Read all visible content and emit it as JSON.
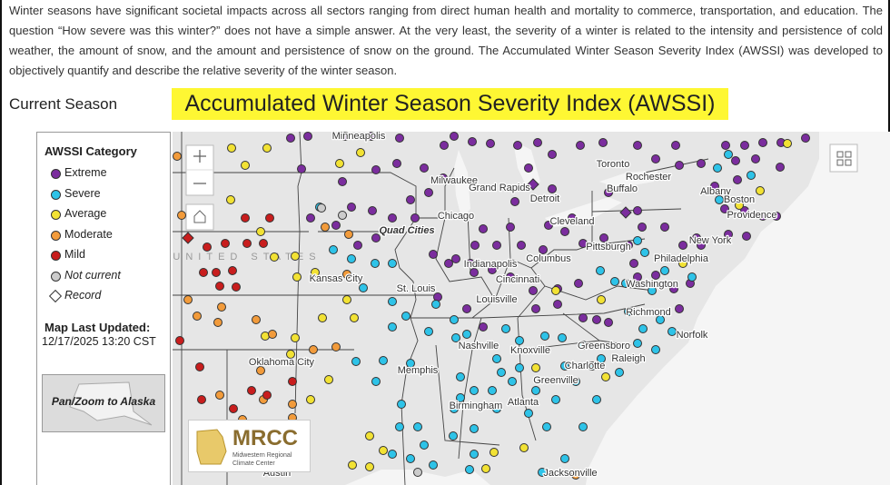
{
  "intro": "Winter seasons have significant societal impacts across all sectors ranging from direct human health and mortality to commerce, transportation, and education. The question “How severe was this winter?” does not have a simple answer. At the very least, the severity of a winter is related to the intensity and persistence of cold weather, the amount of snow, and the amount and persistence of snow on the ground. The Accumulated Winter Season Severity Index (AWSSI) was developed to objectively quantify and describe the relative severity of the winter season.",
  "section_heading": "Current Season",
  "title": "Accumulated Winter Season Severity Index (AWSSI)",
  "legend": {
    "title": "AWSSI Category",
    "items": [
      "Extreme",
      "Severe",
      "Average",
      "Moderate",
      "Mild",
      "Not current",
      "Record"
    ]
  },
  "last_updated": {
    "label": "Map Last Updated:",
    "value": "12/17/2025 13:20 CST"
  },
  "alaska_link": "Pan/Zoom to Alaska",
  "logo": {
    "name": "MRCC",
    "line1": "Midwestern Regional",
    "line2": "Climate Center"
  },
  "map": {
    "country_label": "UNITED STATES",
    "cities": [
      "Minneapolis",
      "Toronto",
      "Rochester",
      "Buffalo",
      "Albany",
      "Boston",
      "Milwaukee",
      "Grand Rapids",
      "Detroit",
      "Cleveland",
      "Chicago",
      "Quad Cities",
      "New York",
      "Pittsburgh",
      "Providence",
      "Philadelphia",
      "Columbus",
      "Indianapolis",
      "Cincinnati",
      "Kansas City",
      "St. Louis",
      "Washington",
      "Louisville",
      "Richmond",
      "Norfolk",
      "Nashville",
      "Knoxville",
      "Greensboro",
      "Oklahoma City",
      "Raleigh",
      "Charlotte",
      "Memphis",
      "Greenville",
      "Atlanta",
      "Birmingham",
      "Austin",
      "Jacksonville"
    ]
  }
}
